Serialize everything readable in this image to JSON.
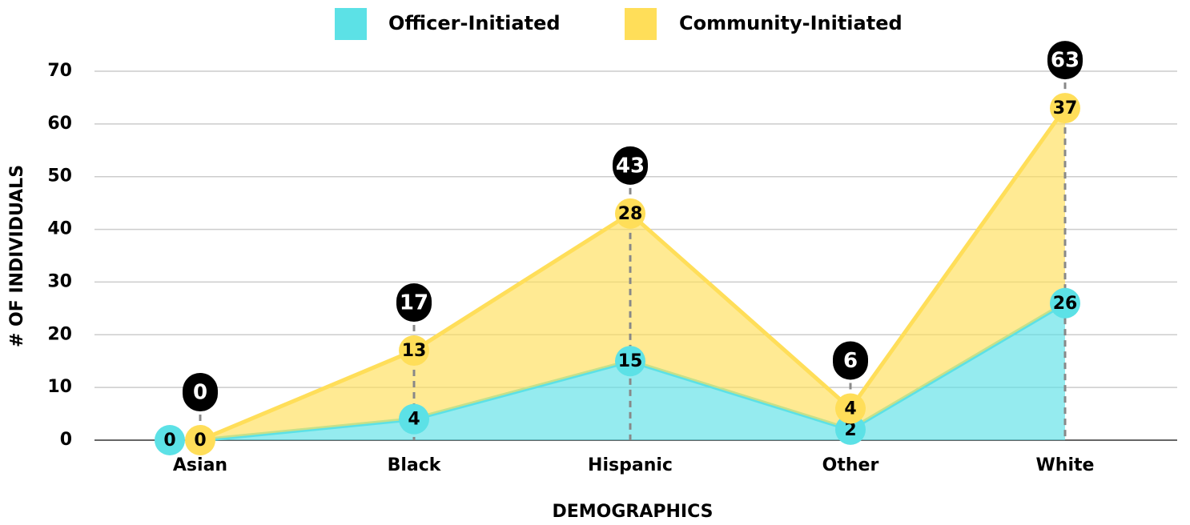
{
  "chart_data": {
    "type": "stacked_area",
    "x_label": "DEMOGRAPHICS",
    "y_label": "# OF INDIVIDUALS",
    "categories": [
      "Asian",
      "Black",
      "Hispanic",
      "Other",
      "White"
    ],
    "series": [
      {
        "name": "Officer-Initiated",
        "color": "#5ce1e6",
        "values": [
          0,
          4,
          15,
          2,
          26
        ]
      },
      {
        "name": "Community-Initiated",
        "color": "#ffde59",
        "values": [
          0,
          13,
          28,
          4,
          37
        ]
      }
    ],
    "total_labels": [
      0,
      17,
      43,
      6,
      63
    ],
    "ylim": [
      0,
      70
    ],
    "yticks": [
      0,
      10,
      20,
      30,
      40,
      50,
      60,
      70
    ],
    "grid": true,
    "legend": "top"
  }
}
